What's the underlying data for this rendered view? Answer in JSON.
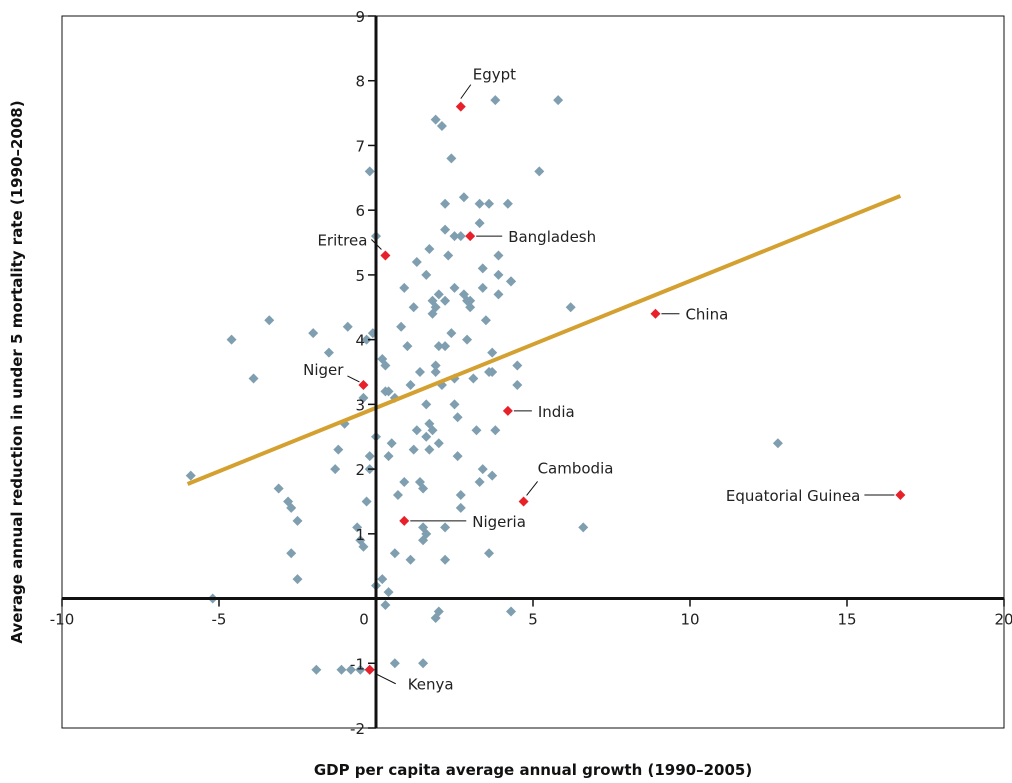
{
  "chart_data": {
    "type": "scatter",
    "title": "",
    "xlabel": "GDP per capita average annual growth (1990–2005)",
    "ylabel": "Average annual reduction in under 5 mortality rate (1990–2008)",
    "xlim": [
      -10,
      20
    ],
    "ylim": [
      -2,
      9
    ],
    "x_ticks": [
      "-10",
      "-5",
      "0",
      "5",
      "10",
      "15",
      "20"
    ],
    "x_tick_values": [
      -10,
      -5,
      0,
      5,
      10,
      15,
      20
    ],
    "y_ticks": [
      "-2",
      "-1",
      "1",
      "2",
      "3",
      "4",
      "5",
      "6",
      "7",
      "8",
      "9"
    ],
    "y_tick_values": [
      -2,
      -1,
      1,
      2,
      3,
      4,
      5,
      6,
      7,
      8,
      9
    ],
    "grid": false,
    "colors": {
      "points": "#7f9fb0",
      "highlight": "#e8202a",
      "trend": "#d4a030",
      "axis": "#111111"
    },
    "series": [
      {
        "points": [
          [
            -5.9,
            1.9
          ],
          [
            -5.2,
            0.0
          ],
          [
            -4.6,
            4.0
          ],
          [
            -3.9,
            3.4
          ],
          [
            -3.4,
            4.3
          ],
          [
            -3.1,
            1.7
          ],
          [
            -2.8,
            1.5
          ],
          [
            -2.7,
            1.4
          ],
          [
            -2.5,
            1.2
          ],
          [
            -2.7,
            0.7
          ],
          [
            -2.5,
            0.3
          ],
          [
            -2.0,
            4.1
          ],
          [
            -1.5,
            3.8
          ],
          [
            -1.3,
            2.0
          ],
          [
            -1.2,
            2.3
          ],
          [
            -0.9,
            4.2
          ],
          [
            -1.0,
            2.7
          ],
          [
            -1.9,
            -1.1
          ],
          [
            -1.1,
            -1.1
          ],
          [
            -0.8,
            -1.1
          ],
          [
            -0.5,
            -1.1
          ],
          [
            -0.2,
            -1.1
          ],
          [
            -0.4,
            3.1
          ],
          [
            -0.3,
            4.0
          ],
          [
            -0.1,
            4.1
          ],
          [
            -0.2,
            2.2
          ],
          [
            0.0,
            2.5
          ],
          [
            -0.6,
            1.1
          ],
          [
            -0.5,
            0.9
          ],
          [
            -0.4,
            0.8
          ],
          [
            -0.3,
            1.5
          ],
          [
            -0.2,
            2.0
          ],
          [
            0.0,
            0.2
          ],
          [
            0.0,
            5.6
          ],
          [
            -0.2,
            6.6
          ],
          [
            0.2,
            3.7
          ],
          [
            0.3,
            3.6
          ],
          [
            0.3,
            3.2
          ],
          [
            0.4,
            3.2
          ],
          [
            0.4,
            2.2
          ],
          [
            0.6,
            3.1
          ],
          [
            0.5,
            2.4
          ],
          [
            0.7,
            1.6
          ],
          [
            0.6,
            0.7
          ],
          [
            0.8,
            4.2
          ],
          [
            0.9,
            4.8
          ],
          [
            1.0,
            3.9
          ],
          [
            1.1,
            3.3
          ],
          [
            1.2,
            2.3
          ],
          [
            1.3,
            2.6
          ],
          [
            1.3,
            5.2
          ],
          [
            1.2,
            4.5
          ],
          [
            0.6,
            -1.0
          ],
          [
            0.4,
            0.1
          ],
          [
            0.3,
            -0.1
          ],
          [
            0.2,
            0.3
          ],
          [
            1.4,
            1.8
          ],
          [
            1.5,
            1.1
          ],
          [
            1.5,
            0.9
          ],
          [
            1.6,
            1.0
          ],
          [
            1.6,
            2.5
          ],
          [
            1.6,
            3.0
          ],
          [
            1.7,
            2.7
          ],
          [
            1.8,
            2.6
          ],
          [
            1.9,
            3.5
          ],
          [
            1.6,
            5.0
          ],
          [
            1.7,
            5.4
          ],
          [
            1.8,
            4.4
          ],
          [
            1.9,
            4.5
          ],
          [
            1.8,
            4.6
          ],
          [
            2.0,
            4.7
          ],
          [
            2.0,
            3.9
          ],
          [
            2.1,
            3.3
          ],
          [
            2.2,
            3.9
          ],
          [
            1.9,
            7.4
          ],
          [
            2.1,
            7.3
          ],
          [
            2.2,
            6.1
          ],
          [
            2.2,
            5.7
          ],
          [
            2.3,
            5.3
          ],
          [
            2.4,
            4.1
          ],
          [
            2.5,
            3.4
          ],
          [
            2.5,
            3.0
          ],
          [
            2.6,
            2.8
          ],
          [
            2.6,
            2.2
          ],
          [
            2.7,
            1.6
          ],
          [
            2.7,
            1.4
          ],
          [
            2.2,
            0.6
          ],
          [
            2.0,
            -0.2
          ],
          [
            2.2,
            1.1
          ],
          [
            2.4,
            6.8
          ],
          [
            2.5,
            5.6
          ],
          [
            2.7,
            5.6
          ],
          [
            2.8,
            4.7
          ],
          [
            2.9,
            4.6
          ],
          [
            3.0,
            4.5
          ],
          [
            3.1,
            3.4
          ],
          [
            3.2,
            2.6
          ],
          [
            3.3,
            5.8
          ],
          [
            3.4,
            5.1
          ],
          [
            3.4,
            4.8
          ],
          [
            3.5,
            4.3
          ],
          [
            3.6,
            3.5
          ],
          [
            3.7,
            3.8
          ],
          [
            3.8,
            2.6
          ],
          [
            3.9,
            4.7
          ],
          [
            3.3,
            1.8
          ],
          [
            3.4,
            2.0
          ],
          [
            3.6,
            0.7
          ],
          [
            4.3,
            -0.2
          ],
          [
            3.3,
            6.1
          ],
          [
            3.6,
            6.1
          ],
          [
            3.8,
            7.7
          ],
          [
            4.2,
            6.1
          ],
          [
            5.2,
            6.6
          ],
          [
            5.8,
            7.7
          ],
          [
            3.9,
            5.0
          ],
          [
            3.9,
            5.3
          ],
          [
            4.3,
            4.9
          ],
          [
            4.5,
            3.3
          ],
          [
            4.5,
            3.6
          ],
          [
            3.7,
            3.5
          ],
          [
            3.7,
            1.9
          ],
          [
            4.3,
            4.9
          ],
          [
            6.2,
            4.5
          ],
          [
            6.6,
            1.1
          ],
          [
            12.8,
            2.4
          ],
          [
            2.8,
            6.2
          ],
          [
            1.9,
            -0.3
          ],
          [
            1.9,
            3.6
          ],
          [
            2.0,
            2.4
          ],
          [
            1.5,
            1.7
          ],
          [
            1.7,
            2.3
          ],
          [
            1.1,
            0.6
          ],
          [
            1.5,
            -1.0
          ],
          [
            0.9,
            1.8
          ],
          [
            1.4,
            3.5
          ],
          [
            2.2,
            4.6
          ],
          [
            2.5,
            4.8
          ],
          [
            2.9,
            4.0
          ],
          [
            3.0,
            4.6
          ]
        ]
      },
      {
        "points": [
          [
            2.7,
            7.6
          ],
          [
            3.0,
            5.6
          ],
          [
            0.3,
            5.3
          ],
          [
            8.9,
            4.4
          ],
          [
            -0.4,
            3.3
          ],
          [
            4.2,
            2.9
          ],
          [
            4.7,
            1.5
          ],
          [
            16.7,
            1.6
          ],
          [
            0.9,
            1.2
          ],
          [
            -0.2,
            -1.1
          ]
        ]
      }
    ],
    "labels": [
      {
        "text": "Egypt",
        "x": 2.7,
        "y": 7.6
      },
      {
        "text": "Bangladesh",
        "x": 3.0,
        "y": 5.6
      },
      {
        "text": "Eritrea",
        "x": 0.3,
        "y": 5.3
      },
      {
        "text": "China",
        "x": 8.9,
        "y": 4.4
      },
      {
        "text": "Niger",
        "x": -0.4,
        "y": 3.3
      },
      {
        "text": "India",
        "x": 4.2,
        "y": 2.9
      },
      {
        "text": "Cambodia",
        "x": 4.7,
        "y": 1.5
      },
      {
        "text": "Equatorial Guinea",
        "x": 16.7,
        "y": 1.6
      },
      {
        "text": "Nigeria",
        "x": 0.9,
        "y": 1.2
      },
      {
        "text": "Kenya",
        "x": -0.2,
        "y": -1.1
      }
    ],
    "trendline": {
      "x": [
        -6,
        16.7
      ],
      "y": [
        1.77,
        6.22
      ]
    }
  }
}
